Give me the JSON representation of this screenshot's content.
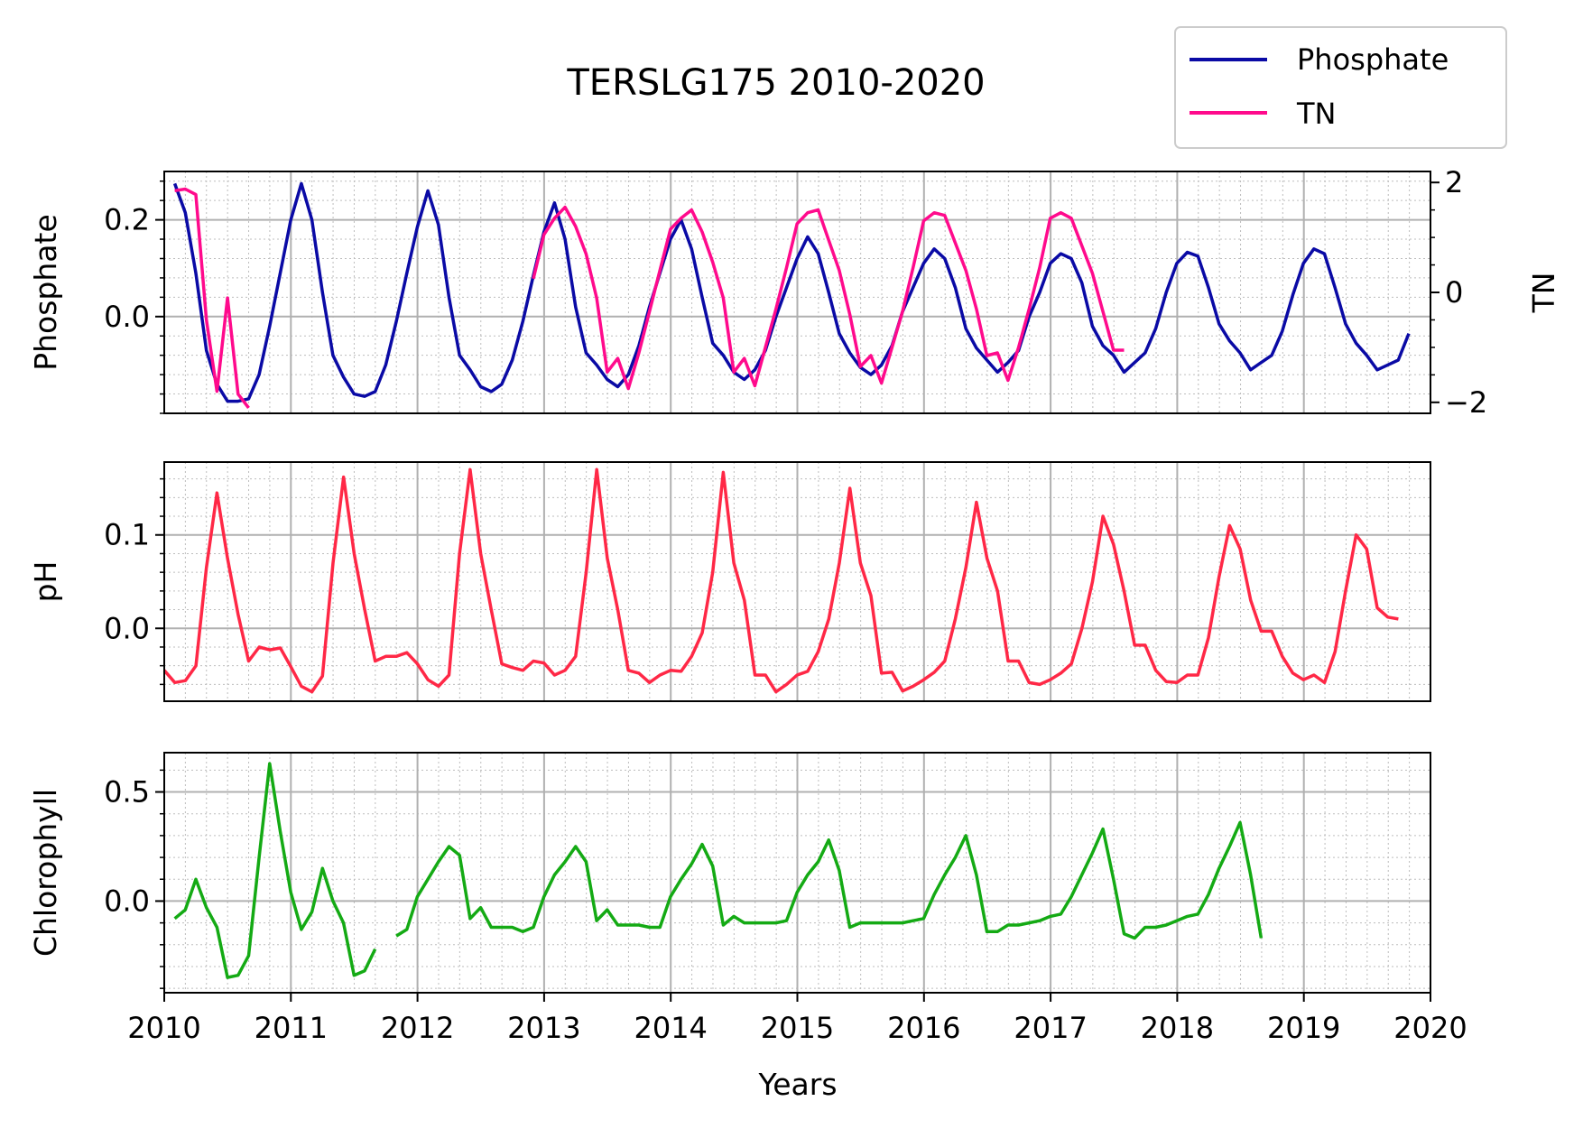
{
  "chart_data": {
    "type": "line",
    "title": "TERSLG175 2010-2020",
    "xlabel": "Years",
    "xlim": [
      2010,
      2020
    ],
    "x_ticks": [
      "2010",
      "2011",
      "2012",
      "2013",
      "2014",
      "2015",
      "2016",
      "2017",
      "2018",
      "2019",
      "2020"
    ],
    "grid": true,
    "legend": {
      "placement": "top-right",
      "entries": [
        "Phosphate",
        "TN"
      ]
    },
    "panels": [
      {
        "ylabel": "Phosphate",
        "ylim": [
          -0.2,
          0.3
        ],
        "y_ticks": [
          {
            "value": 0.2,
            "label": "0.2"
          },
          {
            "value": 0.0,
            "label": "0.0"
          }
        ],
        "right_axis": {
          "ylabel": "TN",
          "ylim": [
            -2.2,
            2.2
          ],
          "y_ticks": [
            {
              "value": 2,
              "label": "2"
            },
            {
              "value": 0,
              "label": "0"
            },
            {
              "value": -2,
              "label": "−2"
            }
          ]
        },
        "series": [
          {
            "name": "Phosphate",
            "axis": "left",
            "color": "#0a0aa5",
            "x_start": 2010.083,
            "x_step": 0.0833,
            "values": [
              0.275,
              0.215,
              0.09,
              -0.07,
              -0.14,
              -0.175,
              -0.175,
              -0.17,
              -0.12,
              -0.02,
              0.09,
              0.2,
              0.275,
              0.2,
              0.05,
              -0.08,
              -0.125,
              -0.16,
              -0.165,
              -0.155,
              -0.1,
              -0.01,
              0.09,
              0.185,
              0.26,
              0.19,
              0.04,
              -0.08,
              -0.11,
              -0.145,
              -0.155,
              -0.14,
              -0.09,
              -0.01,
              0.085,
              0.175,
              0.235,
              0.16,
              0.02,
              -0.075,
              -0.1,
              -0.13,
              -0.145,
              -0.12,
              -0.06,
              0.02,
              0.09,
              0.16,
              0.2,
              0.14,
              0.04,
              -0.055,
              -0.08,
              -0.115,
              -0.13,
              -0.11,
              -0.07,
              0.0,
              0.06,
              0.12,
              0.165,
              0.13,
              0.05,
              -0.035,
              -0.075,
              -0.105,
              -0.12,
              -0.1,
              -0.06,
              0.01,
              0.06,
              0.11,
              0.14,
              0.12,
              0.06,
              -0.025,
              -0.065,
              -0.09,
              -0.115,
              -0.095,
              -0.07,
              0.0,
              0.05,
              0.11,
              0.13,
              0.12,
              0.07,
              -0.02,
              -0.06,
              -0.08,
              -0.115,
              -0.095,
              -0.075,
              -0.025,
              0.05,
              0.11,
              0.133,
              0.125,
              0.06,
              -0.015,
              -0.05,
              -0.075,
              -0.11,
              -0.095,
              -0.08,
              -0.03,
              0.045,
              0.11,
              0.14,
              0.13,
              0.06,
              -0.015,
              -0.055,
              -0.08,
              -0.11,
              -0.1,
              -0.09,
              -0.035
            ]
          },
          {
            "name": "TN",
            "axis": "right",
            "color": "#ff0a8c",
            "x_start": 2010.083,
            "x_step": 0.0833,
            "values": [
              1.85,
              1.88,
              1.78,
              -0.5,
              -1.8,
              -0.1,
              -1.85,
              -2.1,
              null,
              null,
              null,
              null,
              null,
              null,
              null,
              null,
              null,
              null,
              null,
              null,
              null,
              null,
              null,
              null,
              null,
              null,
              null,
              null,
              null,
              null,
              null,
              null,
              null,
              null,
              0.25,
              1.05,
              1.35,
              1.55,
              1.2,
              0.7,
              -0.1,
              -1.45,
              -1.2,
              -1.75,
              -1.1,
              -0.35,
              0.4,
              1.15,
              1.35,
              1.5,
              1.1,
              0.55,
              -0.1,
              -1.45,
              -1.2,
              -1.7,
              -1.0,
              -0.3,
              0.45,
              1.25,
              1.45,
              1.5,
              0.95,
              0.4,
              -0.4,
              -1.35,
              -1.15,
              -1.65,
              -1.0,
              -0.35,
              0.45,
              1.3,
              1.45,
              1.4,
              0.9,
              0.4,
              -0.3,
              -1.15,
              -1.1,
              -1.6,
              -1.0,
              -0.3,
              0.45,
              1.35,
              1.45,
              1.35,
              0.85,
              0.35,
              -0.35,
              -1.05,
              -1.05
            ]
          }
        ]
      },
      {
        "ylabel": "pH",
        "ylim": [
          -0.078,
          0.178
        ],
        "y_ticks": [
          {
            "value": 0.1,
            "label": "0.1"
          },
          {
            "value": 0.0,
            "label": "0.0"
          }
        ],
        "series": [
          {
            "name": "",
            "color": "#ff2846",
            "x_start": 2010.0,
            "x_step": 0.0833,
            "values": [
              -0.045,
              -0.058,
              -0.056,
              -0.04,
              0.065,
              0.145,
              0.075,
              0.015,
              -0.035,
              -0.02,
              -0.023,
              -0.021,
              -0.041,
              -0.062,
              -0.068,
              -0.051,
              0.07,
              0.162,
              0.08,
              0.02,
              -0.035,
              -0.03,
              -0.03,
              -0.026,
              -0.038,
              -0.055,
              -0.062,
              -0.05,
              0.08,
              0.17,
              0.08,
              0.02,
              -0.038,
              -0.042,
              -0.045,
              -0.035,
              -0.037,
              -0.05,
              -0.045,
              -0.03,
              0.06,
              0.17,
              0.075,
              0.02,
              -0.045,
              -0.048,
              -0.058,
              -0.05,
              -0.045,
              -0.046,
              -0.03,
              -0.005,
              0.06,
              0.167,
              0.07,
              0.03,
              -0.05,
              -0.05,
              -0.068,
              -0.06,
              -0.05,
              -0.046,
              -0.025,
              0.01,
              0.07,
              0.15,
              0.07,
              0.035,
              -0.048,
              -0.047,
              -0.067,
              -0.062,
              -0.055,
              -0.047,
              -0.035,
              0.01,
              0.065,
              0.135,
              0.075,
              0.04,
              -0.035,
              -0.035,
              -0.058,
              -0.06,
              -0.055,
              -0.048,
              -0.038,
              0.0,
              0.05,
              0.12,
              0.09,
              0.04,
              -0.018,
              -0.018,
              -0.045,
              -0.057,
              -0.058,
              -0.05,
              -0.05,
              -0.01,
              0.055,
              0.11,
              0.085,
              0.03,
              -0.003,
              -0.003,
              -0.03,
              -0.048,
              -0.055,
              -0.05,
              -0.058,
              -0.025,
              0.04,
              0.1,
              0.085,
              0.022,
              0.012,
              0.01
            ]
          }
        ]
      },
      {
        "ylabel": "Chlorophyll",
        "ylim": [
          -0.42,
          0.68
        ],
        "y_ticks": [
          {
            "value": 0.5,
            "label": "0.5"
          },
          {
            "value": 0.0,
            "label": "0.0"
          }
        ],
        "series": [
          {
            "name": "",
            "color": "#14aa14",
            "x_start": 2010.083,
            "x_step": 0.0833,
            "values": [
              -0.08,
              -0.04,
              0.1,
              -0.03,
              -0.12,
              -0.35,
              -0.34,
              -0.25,
              0.2,
              0.63,
              0.32,
              0.04,
              -0.13,
              -0.05,
              0.15,
              0.0,
              -0.1,
              -0.34,
              -0.32,
              -0.22,
              null,
              -0.16,
              -0.13,
              0.02,
              0.1,
              0.18,
              0.25,
              0.21,
              -0.08,
              -0.03,
              -0.12,
              -0.12,
              -0.12,
              -0.14,
              -0.12,
              0.02,
              0.12,
              0.18,
              0.25,
              0.18,
              -0.09,
              -0.04,
              -0.11,
              -0.11,
              -0.11,
              -0.12,
              -0.12,
              0.02,
              0.1,
              0.17,
              0.26,
              0.16,
              -0.11,
              -0.07,
              -0.1,
              -0.1,
              -0.1,
              -0.1,
              -0.09,
              0.04,
              0.12,
              0.18,
              0.28,
              0.14,
              -0.12,
              -0.1,
              -0.1,
              -0.1,
              -0.1,
              -0.1,
              -0.09,
              -0.08,
              0.03,
              0.12,
              0.2,
              0.3,
              0.12,
              -0.14,
              -0.14,
              -0.11,
              -0.11,
              -0.1,
              -0.09,
              -0.07,
              -0.06,
              0.02,
              0.12,
              0.22,
              0.33,
              0.1,
              -0.15,
              -0.17,
              -0.12,
              -0.12,
              -0.11,
              -0.09,
              -0.07,
              -0.06,
              0.03,
              0.15,
              0.25,
              0.36,
              0.12,
              -0.17
            ]
          }
        ]
      }
    ]
  }
}
